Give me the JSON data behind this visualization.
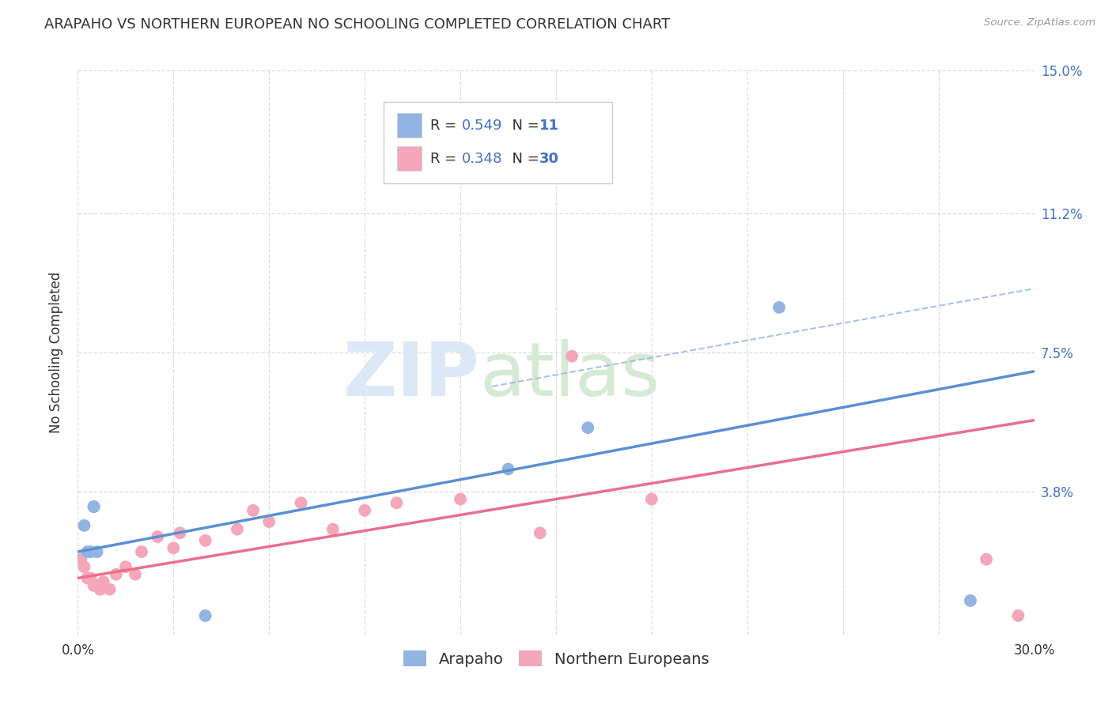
{
  "title": "ARAPAHO VS NORTHERN EUROPEAN NO SCHOOLING COMPLETED CORRELATION CHART",
  "source": "Source: ZipAtlas.com",
  "ylabel": "No Schooling Completed",
  "xlim": [
    0.0,
    0.3
  ],
  "ylim": [
    0.0,
    0.15
  ],
  "ytick_values": [
    0.0,
    0.038,
    0.075,
    0.112,
    0.15
  ],
  "ytick_labels_right": [
    "",
    "3.8%",
    "7.5%",
    "11.2%",
    "15.0%"
  ],
  "xtick_values": [
    0.0,
    0.03,
    0.06,
    0.09,
    0.12,
    0.15,
    0.18,
    0.21,
    0.24,
    0.27,
    0.3
  ],
  "arapaho_color": "#92b4e3",
  "northern_european_color": "#f4a7b9",
  "arapaho_line_color": "#5b8fd4",
  "northern_european_line_color": "#e8708a",
  "arapaho_R": "0.549",
  "arapaho_N": "11",
  "northern_european_R": "0.348",
  "northern_european_N": "30",
  "background_color": "#ffffff",
  "grid_color": "#dddddd",
  "label_color": "#4472c4",
  "text_color": "#333333",
  "arapaho_x": [
    0.002,
    0.003,
    0.004,
    0.005,
    0.005,
    0.006,
    0.04,
    0.135,
    0.16,
    0.22,
    0.28
  ],
  "arapaho_y": [
    0.029,
    0.022,
    0.022,
    0.034,
    0.034,
    0.022,
    0.005,
    0.044,
    0.055,
    0.087,
    0.009
  ],
  "northern_european_x": [
    0.001,
    0.002,
    0.003,
    0.004,
    0.005,
    0.006,
    0.007,
    0.008,
    0.01,
    0.012,
    0.015,
    0.018,
    0.02,
    0.025,
    0.03,
    0.032,
    0.04,
    0.05,
    0.055,
    0.06,
    0.07,
    0.08,
    0.09,
    0.1,
    0.12,
    0.145,
    0.155,
    0.18,
    0.285,
    0.295
  ],
  "northern_european_y": [
    0.02,
    0.018,
    0.015,
    0.015,
    0.013,
    0.013,
    0.012,
    0.014,
    0.012,
    0.016,
    0.018,
    0.016,
    0.022,
    0.026,
    0.023,
    0.027,
    0.025,
    0.028,
    0.033,
    0.03,
    0.035,
    0.028,
    0.033,
    0.035,
    0.036,
    0.027,
    0.074,
    0.036,
    0.02,
    0.005
  ],
  "arapaho_line_x": [
    0.0,
    0.3
  ],
  "arapaho_line_y": [
    0.022,
    0.07
  ],
  "northern_european_line_x": [
    0.0,
    0.3
  ],
  "northern_european_line_y": [
    0.015,
    0.057
  ],
  "dashed_line_x": [
    0.13,
    0.3
  ],
  "dashed_line_y": [
    0.066,
    0.092
  ],
  "title_fontsize": 13,
  "label_fontsize": 12,
  "tick_fontsize": 12,
  "legend_fontsize": 14,
  "annotation_color": "#4472c4"
}
